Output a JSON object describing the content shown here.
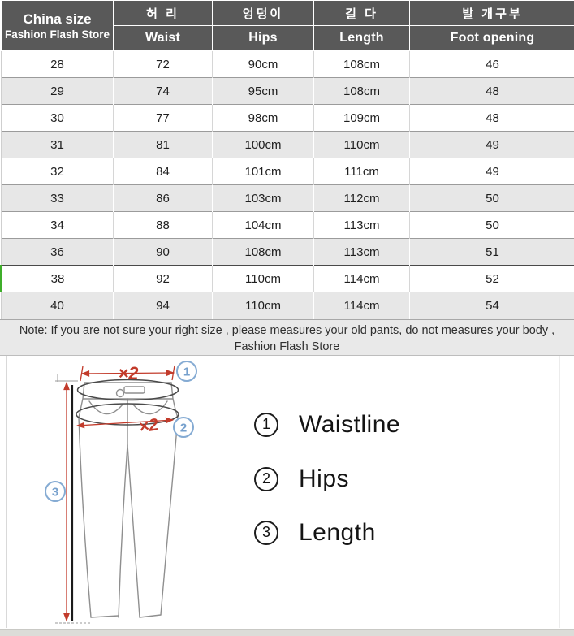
{
  "colors": {
    "header-bg": "#595959",
    "header-text": "#ffffff",
    "row-white": "#ffffff",
    "row-gray": "#e7e7e7",
    "row-border": "#9b9b9b",
    "note-bg": "#e9e9e9",
    "selected-green": "#3fae2a",
    "measure-red": "#c23b2b",
    "marker-blue": "#85abd3",
    "pants-outline": "#8f8f8f"
  },
  "table": {
    "corner": {
      "line1": "China size",
      "line2": "Fashion Flash Store"
    },
    "headers": [
      {
        "korean": "허 리",
        "english": "Waist"
      },
      {
        "korean": "엉덩이",
        "english": "Hips"
      },
      {
        "korean": "길 다",
        "english": "Length"
      },
      {
        "korean": "발 개구부",
        "english": "Foot opening"
      }
    ],
    "selected_size": "38",
    "rows": [
      {
        "size": "28",
        "waist": "72",
        "hips": "90cm",
        "length": "108cm",
        "foot_opening": "46"
      },
      {
        "size": "29",
        "waist": "74",
        "hips": "95cm",
        "length": "108cm",
        "foot_opening": "48"
      },
      {
        "size": "30",
        "waist": "77",
        "hips": "98cm",
        "length": "109cm",
        "foot_opening": "48"
      },
      {
        "size": "31",
        "waist": "81",
        "hips": "100cm",
        "length": "110cm",
        "foot_opening": "49"
      },
      {
        "size": "32",
        "waist": "84",
        "hips": "101cm",
        "length": "111cm",
        "foot_opening": "49"
      },
      {
        "size": "33",
        "waist": "86",
        "hips": "103cm",
        "length": "112cm",
        "foot_opening": "50"
      },
      {
        "size": "34",
        "waist": "88",
        "hips": "104cm",
        "length": "113cm",
        "foot_opening": "50"
      },
      {
        "size": "36",
        "waist": "90",
        "hips": "108cm",
        "length": "113cm",
        "foot_opening": "51"
      },
      {
        "size": "38",
        "waist": "92",
        "hips": "110cm",
        "length": "114cm",
        "foot_opening": "52"
      },
      {
        "size": "40",
        "waist": "94",
        "hips": "110cm",
        "length": "114cm",
        "foot_opening": "54"
      }
    ]
  },
  "note": {
    "line1": "Note:  If you are not sure your right size , please measures your old pants, do not measures your body ,",
    "line2": "Fashion Flash Store"
  },
  "diagram": {
    "waist_multiplier": "×2",
    "hips_multiplier": "×2",
    "marker_waist": "1",
    "marker_hips": "2",
    "marker_length": "3",
    "legend": [
      {
        "number": "1",
        "label": "Waistline"
      },
      {
        "number": "2",
        "label": "Hips"
      },
      {
        "number": "3",
        "label": "Length"
      }
    ]
  }
}
